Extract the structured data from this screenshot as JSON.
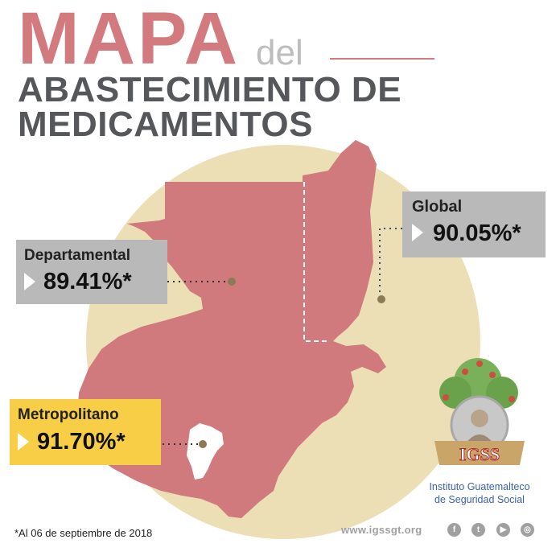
{
  "header": {
    "title_main": "MAPA",
    "title_connector": "del",
    "subtitle_line1": "ABASTECIMIENTO DE",
    "subtitle_line2": "MEDICAMENTOS"
  },
  "stats": {
    "global": {
      "label": "Global",
      "value": "90.05%*"
    },
    "departamental": {
      "label": "Departamental",
      "value": "89.41%*"
    },
    "metropolitano": {
      "label": "Metropolitano",
      "value": "91.70%*"
    }
  },
  "institution": {
    "logo_text": "IGSS",
    "name_line1": "Instituto Guatemalteco",
    "name_line2": "de Seguridad Social"
  },
  "footer": {
    "footnote": "*Al 06 de septiembre de 2018",
    "website": "www.igssgt.org",
    "social_icons": [
      "facebook-icon",
      "twitter-icon",
      "youtube-icon",
      "instagram-icon"
    ]
  },
  "colors": {
    "title_red": "#d27a7e",
    "map_fill": "#d07a7d",
    "circle_bg": "#ecdfb5",
    "stat_box_gray": "#b9b9b9",
    "stat_box_yellow": "#f7ce46",
    "subtitle_gray": "#55575a"
  }
}
